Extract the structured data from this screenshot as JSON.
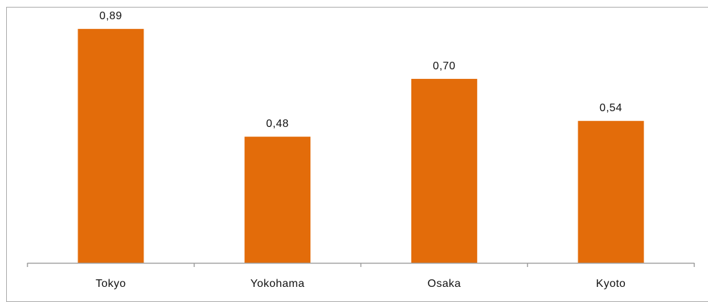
{
  "chart_data": {
    "type": "bar",
    "title": "",
    "xlabel": "",
    "ylabel": "",
    "categories": [
      "Tokyo",
      "Yokohama",
      "Osaka",
      "Kyoto"
    ],
    "values": [
      0.89,
      0.48,
      0.7,
      0.54
    ],
    "value_labels": [
      "0,89",
      "0,48",
      "0,70",
      "0,54"
    ],
    "ylim": [
      0,
      1.0
    ],
    "grid": false,
    "legend": "none",
    "bar_color": "#E36C0A",
    "axis_color": "#a0a0a0"
  }
}
